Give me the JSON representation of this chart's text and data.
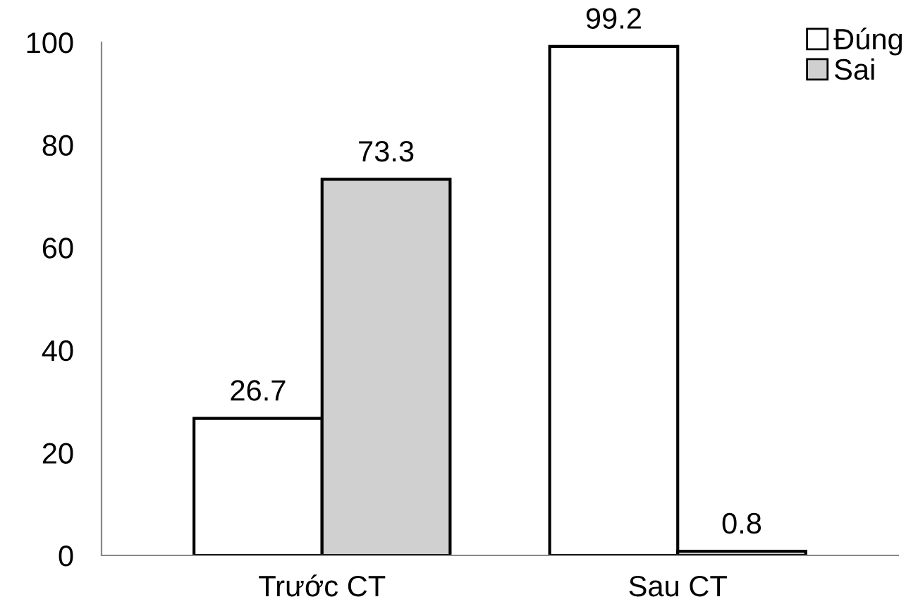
{
  "chart_data": {
    "type": "bar",
    "categories": [
      "Trước CT",
      "Sau CT"
    ],
    "series": [
      {
        "name": "Đúng",
        "color": "#ffffff",
        "values": [
          26.7,
          99.2
        ]
      },
      {
        "name": "Sai",
        "color": "#d0d0d0",
        "values": [
          73.3,
          0.8
        ]
      }
    ],
    "ylim": [
      0,
      100
    ],
    "yticks": [
      0,
      20,
      40,
      60,
      80,
      100
    ],
    "data_labels": true,
    "legend": "top right",
    "grid": false
  }
}
